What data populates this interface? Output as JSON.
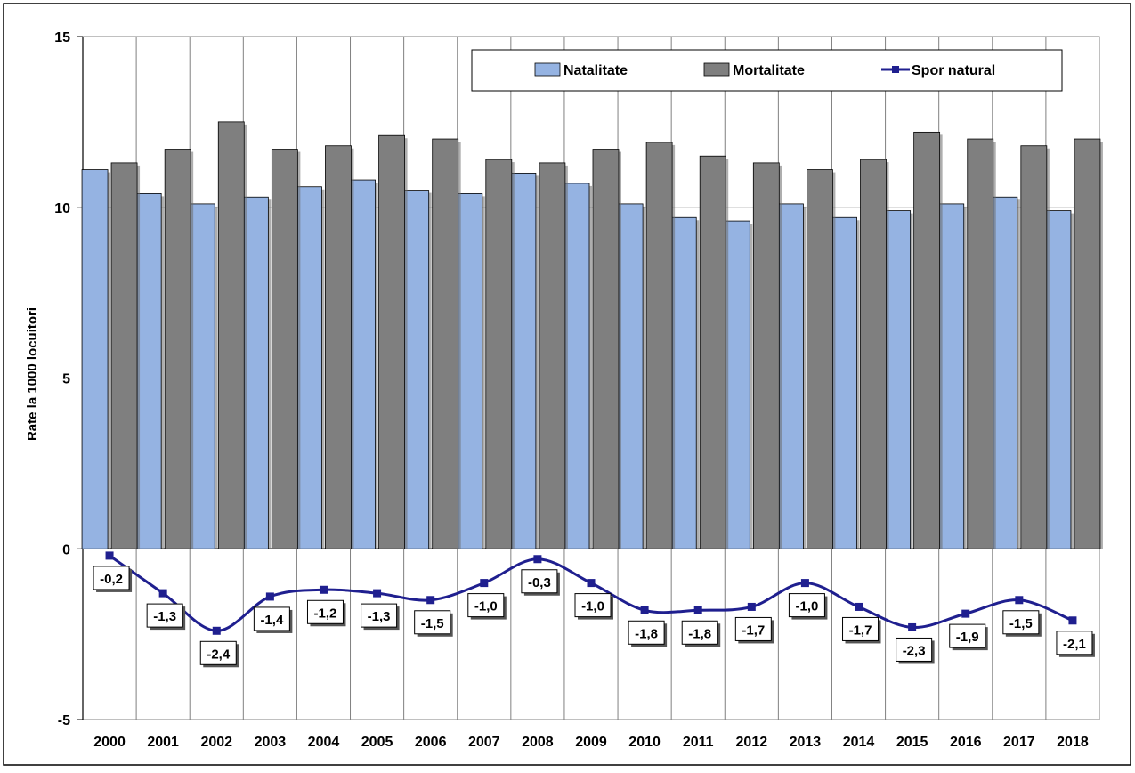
{
  "chart_data": {
    "type": "bar",
    "categories": [
      "2000",
      "2001",
      "2002",
      "2003",
      "2004",
      "2005",
      "2006",
      "2007",
      "2008",
      "2009",
      "2010",
      "2011",
      "2012",
      "2013",
      "2014",
      "2015",
      "2016",
      "2017",
      "2018"
    ],
    "series": [
      {
        "name": "Natalitate",
        "type": "bar",
        "color": "#95B3E2",
        "values": [
          11.1,
          10.4,
          10.1,
          10.3,
          10.6,
          10.8,
          10.5,
          10.4,
          11.0,
          10.7,
          10.1,
          9.7,
          9.6,
          10.1,
          9.7,
          9.9,
          10.1,
          10.3,
          9.9
        ]
      },
      {
        "name": "Mortalitate",
        "type": "bar",
        "color": "#7F7F7F",
        "values": [
          11.3,
          11.7,
          12.5,
          11.7,
          11.8,
          12.1,
          12.0,
          11.4,
          11.3,
          11.7,
          11.9,
          11.5,
          11.3,
          11.1,
          11.4,
          12.2,
          12.0,
          11.8,
          12.0
        ]
      },
      {
        "name": "Spor natural",
        "type": "line",
        "color": "#1F1F8F",
        "values": [
          -0.2,
          -1.3,
          -2.4,
          -1.4,
          -1.2,
          -1.3,
          -1.5,
          -1.0,
          -0.3,
          -1.0,
          -1.8,
          -1.8,
          -1.7,
          -1.0,
          -1.7,
          -2.3,
          -1.9,
          -1.5,
          -2.1
        ]
      }
    ],
    "data_labels": [
      "-0,2",
      "-1,3",
      "-2,4",
      "-1,4",
      "-1,2",
      "-1,3",
      "-1,5",
      "-1,0",
      "-0,3",
      "-1,0",
      "-1,8",
      "-1,8",
      "-1,7",
      "-1,0",
      "-1,7",
      "-2,3",
      "-1,9",
      "-1,5",
      "-2,1"
    ],
    "ylabel": "Rate la 1000 locuitori",
    "xlabel": "",
    "ylim": [
      -5,
      15
    ],
    "yticks": [
      "-5",
      "0",
      "5",
      "10",
      "15"
    ],
    "ytick_values": [
      -5,
      0,
      5,
      10,
      15
    ],
    "grid": true,
    "legend_position": "top-right"
  }
}
